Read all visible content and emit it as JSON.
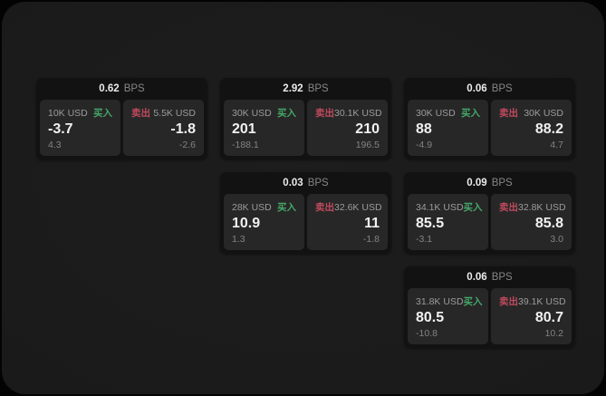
{
  "labels": {
    "bps_unit": "BPS",
    "buy": "买入",
    "sell": "卖出"
  },
  "colors": {
    "buy": "#45a768",
    "sell": "#c04a5e",
    "card_bg": "#121212",
    "tile_bg": "#272727",
    "page_bg": "#1a1a1a"
  },
  "cards": [
    {
      "row": 1,
      "col": 1,
      "bps": "0.62",
      "buy": {
        "amount": "10K USD",
        "value": "-3.7",
        "delta": "4.3"
      },
      "sell": {
        "amount": "5.5K USD",
        "value": "-1.8",
        "delta": "-2.6"
      }
    },
    {
      "row": 1,
      "col": 2,
      "bps": "2.92",
      "buy": {
        "amount": "30K USD",
        "value": "201",
        "delta": "-188.1"
      },
      "sell": {
        "amount": "30.1K USD",
        "value": "210",
        "delta": "196.5"
      }
    },
    {
      "row": 1,
      "col": 3,
      "bps": "0.06",
      "buy": {
        "amount": "30K USD",
        "value": "88",
        "delta": "-4.9"
      },
      "sell": {
        "amount": "30K USD",
        "value": "88.2",
        "delta": "4.7"
      }
    },
    {
      "row": 2,
      "col": 2,
      "bps": "0.03",
      "buy": {
        "amount": "28K USD",
        "value": "10.9",
        "delta": "1.3"
      },
      "sell": {
        "amount": "32.6K USD",
        "value": "11",
        "delta": "-1.8"
      }
    },
    {
      "row": 2,
      "col": 3,
      "bps": "0.09",
      "buy": {
        "amount": "34.1K USD",
        "value": "85.5",
        "delta": "-3.1"
      },
      "sell": {
        "amount": "32.8K USD",
        "value": "85.8",
        "delta": "3.0"
      }
    },
    {
      "row": 3,
      "col": 3,
      "bps": "0.06",
      "buy": {
        "amount": "31.8K USD",
        "value": "80.5",
        "delta": "-10.8"
      },
      "sell": {
        "amount": "39.1K USD",
        "value": "80.7",
        "delta": "10.2"
      }
    }
  ]
}
